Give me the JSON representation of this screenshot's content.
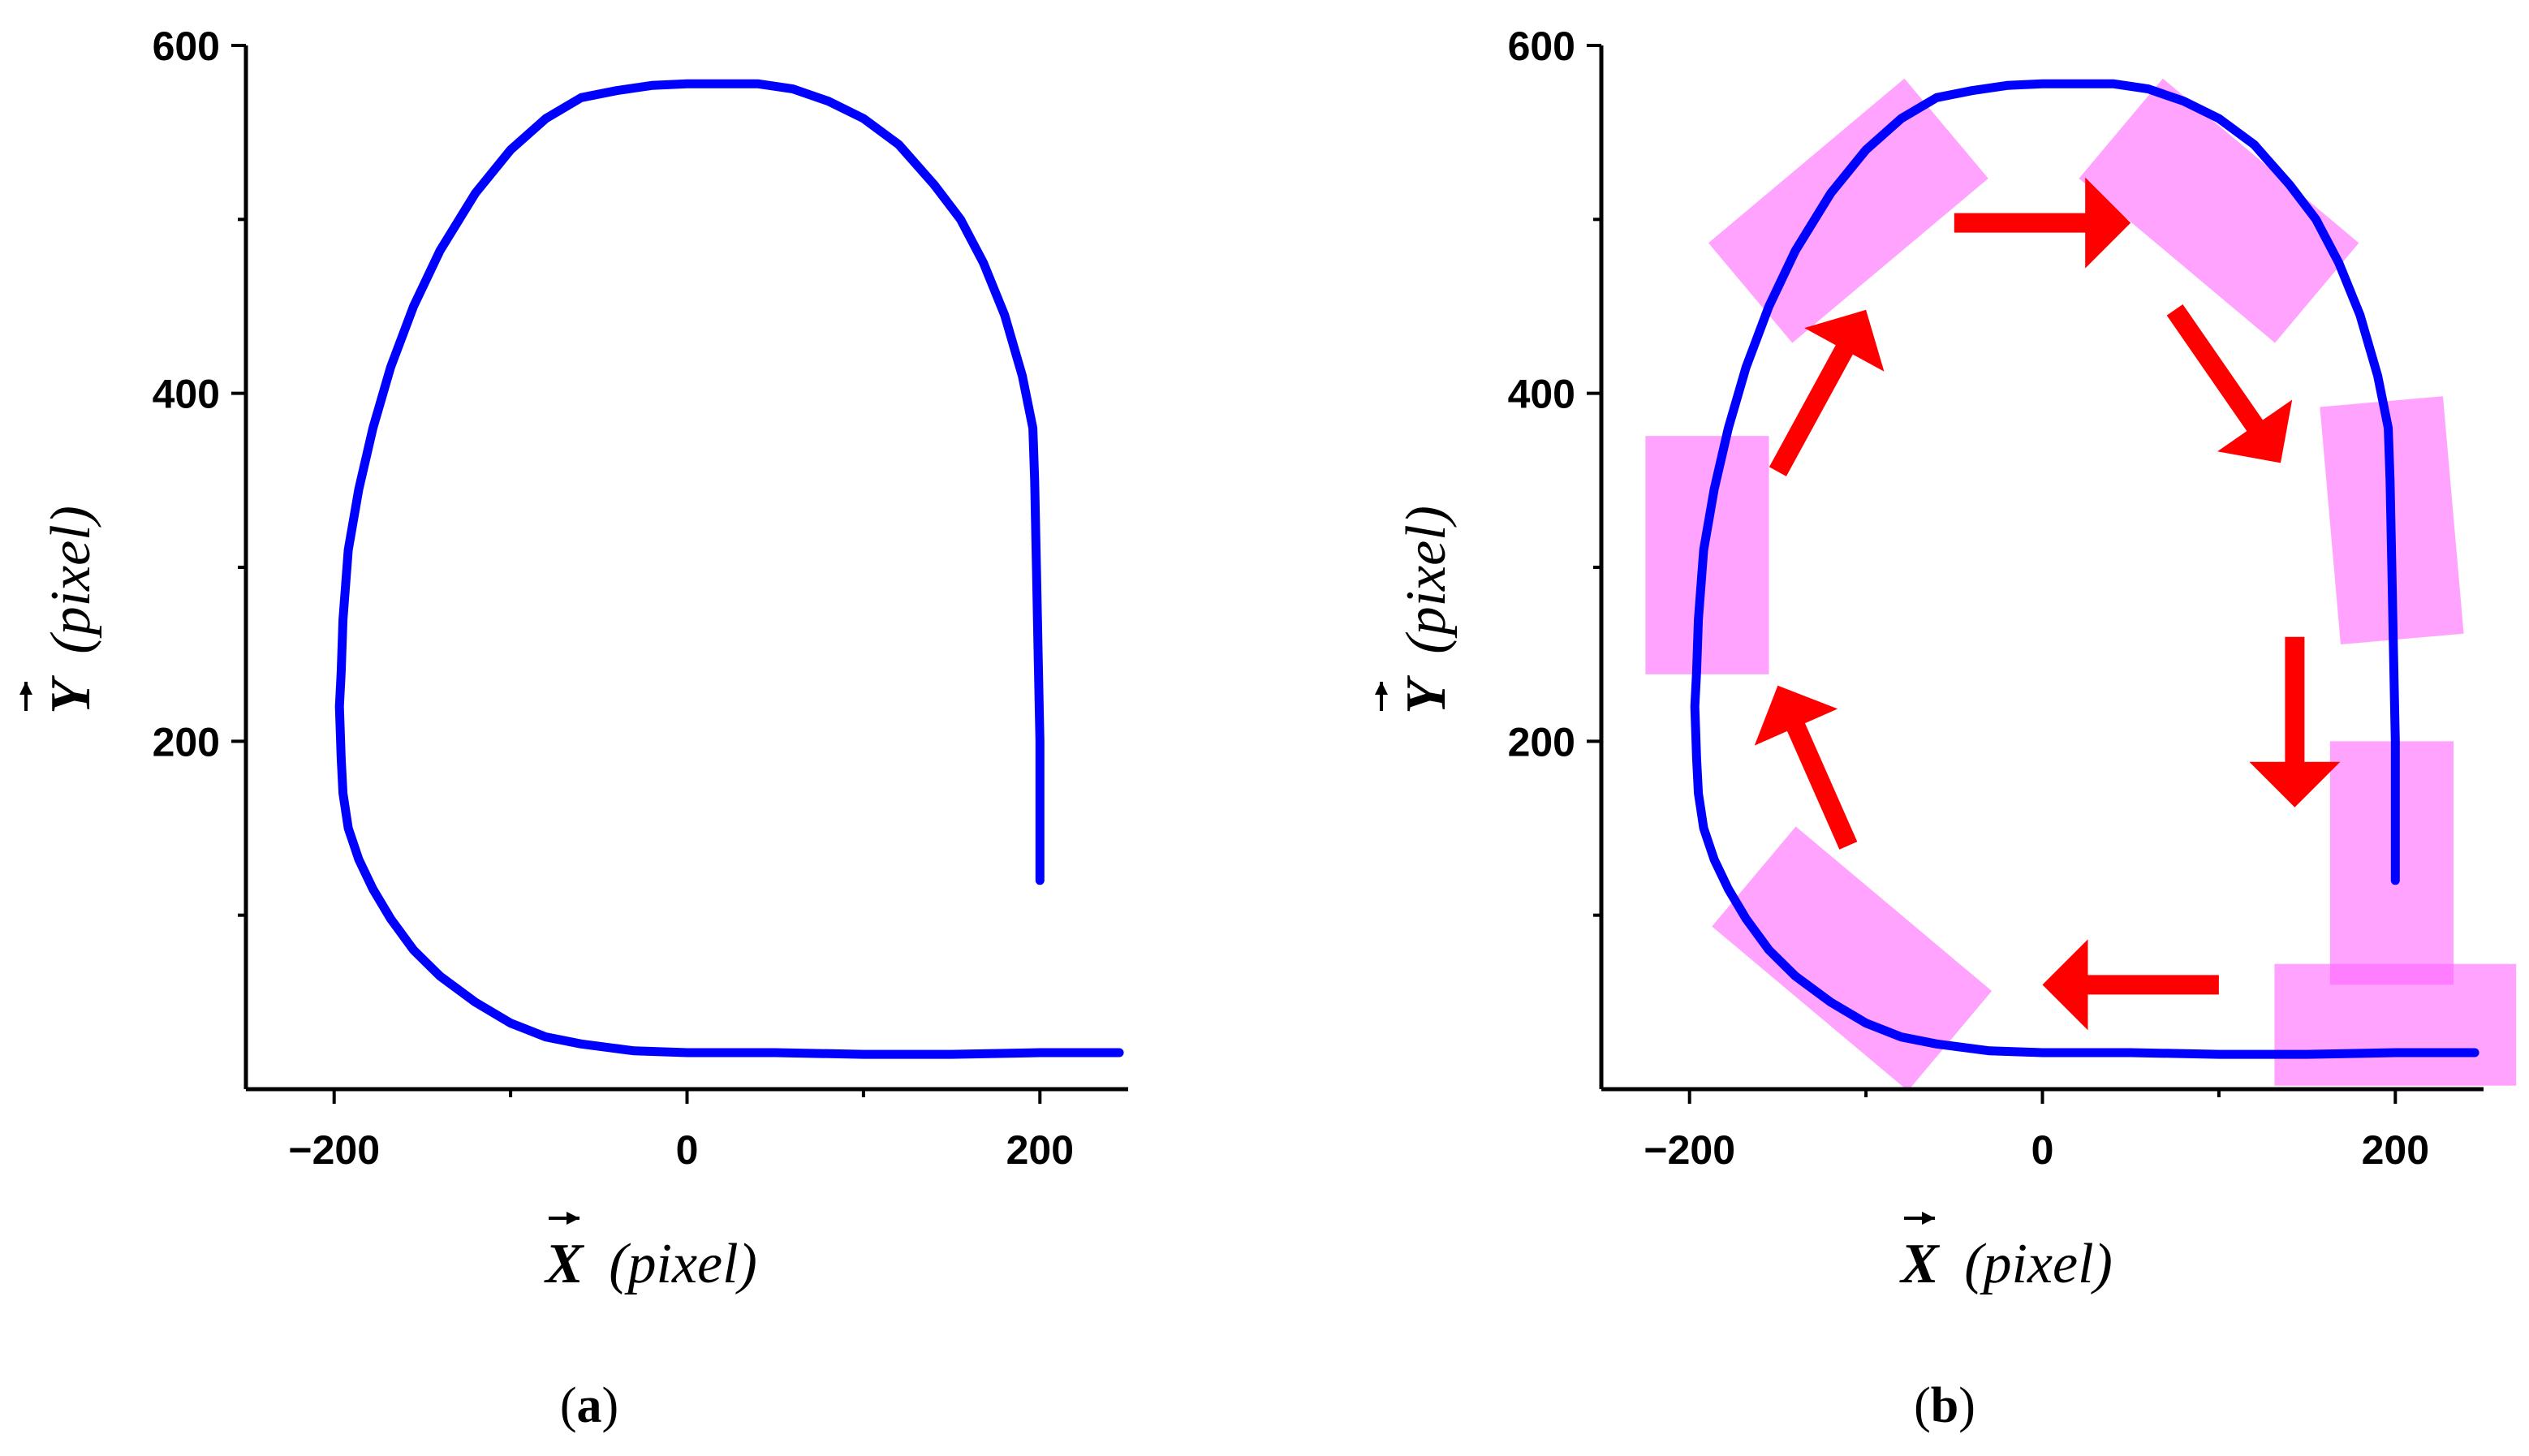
{
  "colors": {
    "trajectory": "#0000ff",
    "highlight": "#ff66ff",
    "arrow": "#ff0000",
    "axis": "#000000"
  },
  "chart_data": [
    {
      "type": "line",
      "panel": "(a)",
      "panel_paren_open": "(",
      "panel_letter": "a",
      "panel_paren_close": ")",
      "xlabel_var": "X",
      "xlabel_unit": "(pixel)",
      "ylabel_var": "Y",
      "ylabel_unit": "(pixel)",
      "xlim": [
        -250,
        250
      ],
      "ylim": [
        0,
        600
      ],
      "x_ticks": [
        -200,
        0,
        200
      ],
      "x_tick_labels": [
        "−200",
        "0",
        "200"
      ],
      "y_ticks": [
        200,
        400,
        600
      ],
      "y_tick_labels": [
        "200",
        "400",
        "600"
      ],
      "legend": "none",
      "grid": false,
      "series": [
        {
          "x": [
            200,
            200,
            199,
            198,
            197,
            196,
            190,
            180,
            168,
            155,
            140,
            120,
            100,
            80,
            60,
            40,
            20,
            0,
            -20,
            -40,
            -60,
            -80,
            -100,
            -120,
            -140,
            -155,
            -168,
            -178,
            -186,
            -192,
            -195,
            -196,
            -197,
            -196,
            -195,
            -192,
            -186,
            -178,
            -168,
            -155,
            -140,
            -120,
            -100,
            -80,
            -60,
            -45,
            -30,
            0,
            50,
            100,
            150,
            200,
            245
          ],
          "y": [
            120,
            200,
            250,
            300,
            350,
            380,
            410,
            445,
            475,
            500,
            520,
            543,
            558,
            568,
            575,
            578,
            578,
            578,
            577,
            574,
            570,
            558,
            540,
            515,
            482,
            450,
            415,
            380,
            345,
            310,
            270,
            240,
            220,
            190,
            170,
            150,
            132,
            115,
            98,
            80,
            65,
            50,
            38,
            30,
            26,
            24,
            22,
            21,
            21,
            20,
            20,
            21,
            21
          ]
        }
      ]
    },
    {
      "type": "line",
      "panel": "(b)",
      "panel_paren_open": "(",
      "panel_letter": "b",
      "panel_paren_close": ")",
      "xlabel_var": "X",
      "xlabel_unit": "(pixel)",
      "ylabel_var": "Y",
      "ylabel_unit": "(pixel)",
      "xlim": [
        -250,
        250
      ],
      "ylim": [
        0,
        600
      ],
      "x_ticks": [
        -200,
        0,
        200
      ],
      "x_tick_labels": [
        "−200",
        "0",
        "200"
      ],
      "y_ticks": [
        200,
        400,
        600
      ],
      "y_tick_labels": [
        "200",
        "400",
        "600"
      ],
      "legend": "none",
      "grid": false,
      "series": [
        {
          "x": [
            200,
            200,
            199,
            198,
            197,
            196,
            190,
            180,
            168,
            155,
            140,
            120,
            100,
            80,
            60,
            40,
            20,
            0,
            -20,
            -40,
            -60,
            -80,
            -100,
            -120,
            -140,
            -155,
            -168,
            -178,
            -186,
            -192,
            -195,
            -196,
            -197,
            -196,
            -195,
            -192,
            -186,
            -178,
            -168,
            -155,
            -140,
            -120,
            -100,
            -80,
            -60,
            -45,
            -30,
            0,
            50,
            100,
            150,
            200,
            245
          ],
          "y": [
            120,
            200,
            250,
            300,
            350,
            380,
            410,
            445,
            475,
            500,
            520,
            543,
            558,
            568,
            575,
            578,
            578,
            578,
            577,
            574,
            570,
            558,
            540,
            515,
            482,
            450,
            415,
            380,
            345,
            310,
            270,
            240,
            220,
            190,
            170,
            150,
            132,
            115,
            98,
            80,
            65,
            50,
            38,
            30,
            26,
            24,
            22,
            21,
            21,
            20,
            20,
            21,
            21
          ]
        }
      ],
      "highlights": [
        {
          "cx": -110,
          "cy": 505,
          "w": 145,
          "h": 75,
          "angle": -40
        },
        {
          "cx": 100,
          "cy": 505,
          "w": 145,
          "h": 75,
          "angle": 40
        },
        {
          "cx": -190,
          "cy": 307,
          "w": 70,
          "h": 137,
          "angle": 0
        },
        {
          "cx": 198,
          "cy": 327,
          "w": 70,
          "h": 137,
          "angle": -5
        },
        {
          "cx": 198,
          "cy": 130,
          "w": 70,
          "h": 140,
          "angle": 0
        },
        {
          "cx": 200,
          "cy": 37,
          "w": 137,
          "h": 70,
          "angle": 0
        },
        {
          "cx": -108,
          "cy": 75,
          "w": 145,
          "h": 75,
          "angle": 40
        }
      ],
      "arrows": [
        {
          "from": [
            -50,
            498
          ],
          "to": [
            50,
            498
          ]
        },
        {
          "from": [
            75,
            448
          ],
          "to": [
            135,
            360
          ]
        },
        {
          "from": [
            143,
            260
          ],
          "to": [
            143,
            162
          ]
        },
        {
          "from": [
            100,
            60
          ],
          "to": [
            0,
            60
          ]
        },
        {
          "from": [
            -110,
            140
          ],
          "to": [
            -150,
            232
          ]
        },
        {
          "from": [
            -150,
            355
          ],
          "to": [
            -100,
            448
          ]
        }
      ]
    }
  ]
}
